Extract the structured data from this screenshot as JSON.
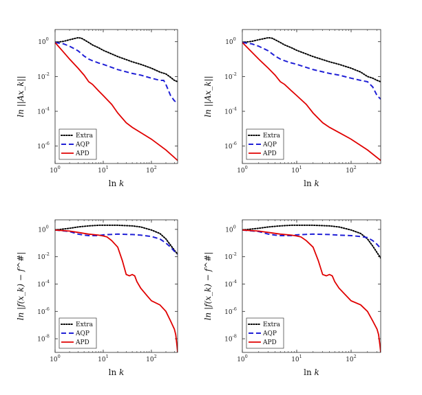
{
  "chart_data": [
    {
      "type": "line",
      "panel": "top-left",
      "xscale": "log",
      "yscale": "log",
      "xlim": [
        1,
        350
      ],
      "ylim": [
        1e-07,
        5
      ],
      "xticks": [
        1,
        10,
        100
      ],
      "yticks": [
        1e-06,
        0.0001,
        0.01,
        1
      ],
      "xlabel": "ln k",
      "ylabel": "ln ||Ax_k||",
      "legend_position": "bottom-left",
      "series": [
        {
          "name": "Extra",
          "style": "dotted",
          "color": "#000000",
          "x": [
            1,
            1.5,
            2,
            2.5,
            3,
            3.5,
            4,
            5,
            6,
            8,
            10,
            20,
            40,
            60,
            100,
            150,
            200,
            250,
            300,
            350
          ],
          "y": [
            0.9,
            1.05,
            1.3,
            1.5,
            1.7,
            1.6,
            1.3,
            0.9,
            0.65,
            0.45,
            0.32,
            0.14,
            0.07,
            0.05,
            0.03,
            0.018,
            0.014,
            0.009,
            0.006,
            0.005
          ]
        },
        {
          "name": "AQP",
          "style": "dashed",
          "color": "#1f1fd6",
          "x": [
            1,
            1.5,
            2,
            3,
            4,
            5,
            6,
            8,
            10,
            20,
            40,
            60,
            100,
            150,
            180,
            200,
            250,
            300,
            350
          ],
          "y": [
            0.9,
            0.75,
            0.55,
            0.3,
            0.15,
            0.1,
            0.08,
            0.06,
            0.05,
            0.025,
            0.015,
            0.012,
            0.008,
            0.006,
            0.006,
            0.0035,
            0.0008,
            0.0004,
            0.0003
          ]
        },
        {
          "name": "APD",
          "style": "solid",
          "color": "#e00000",
          "x": [
            1,
            1.5,
            2,
            3,
            4,
            5,
            6,
            8,
            10,
            15,
            20,
            30,
            40,
            60,
            100,
            200,
            350
          ],
          "y": [
            0.9,
            0.25,
            0.1,
            0.03,
            0.012,
            0.005,
            0.0035,
            0.0015,
            0.0008,
            0.00025,
            8e-05,
            2.2e-05,
            1.2e-05,
            6e-06,
            2.5e-06,
            6e-07,
            1.5e-07
          ]
        }
      ]
    },
    {
      "type": "line",
      "panel": "top-right",
      "xscale": "log",
      "yscale": "log",
      "xlim": [
        1,
        350
      ],
      "ylim": [
        1e-07,
        5
      ],
      "xticks": [
        1,
        10,
        100
      ],
      "yticks": [
        1e-06,
        0.0001,
        0.01,
        1
      ],
      "xlabel": "ln k",
      "ylabel": "ln ||Ax_k||",
      "legend_position": "bottom-left",
      "series": [
        {
          "name": "Extra",
          "style": "dotted",
          "color": "#000000",
          "x": [
            1,
            1.5,
            2,
            2.5,
            3,
            3.5,
            4,
            5,
            6,
            8,
            10,
            20,
            40,
            60,
            100,
            150,
            200,
            250,
            300,
            350
          ],
          "y": [
            0.9,
            1.05,
            1.3,
            1.5,
            1.7,
            1.6,
            1.3,
            0.9,
            0.65,
            0.45,
            0.32,
            0.14,
            0.07,
            0.05,
            0.03,
            0.018,
            0.01,
            0.008,
            0.006,
            0.005
          ]
        },
        {
          "name": "AQP",
          "style": "dashed",
          "color": "#1f1fd6",
          "x": [
            1,
            1.5,
            2,
            3,
            4,
            5,
            6,
            8,
            10,
            20,
            40,
            60,
            100,
            150,
            200,
            250,
            300,
            350
          ],
          "y": [
            0.9,
            0.75,
            0.55,
            0.3,
            0.15,
            0.1,
            0.08,
            0.06,
            0.05,
            0.025,
            0.015,
            0.012,
            0.008,
            0.006,
            0.005,
            0.0025,
            0.0008,
            0.0005
          ]
        },
        {
          "name": "APD",
          "style": "solid",
          "color": "#e00000",
          "x": [
            1,
            1.5,
            2,
            3,
            4,
            5,
            6,
            8,
            10,
            15,
            20,
            30,
            40,
            60,
            100,
            200,
            350
          ],
          "y": [
            0.9,
            0.25,
            0.1,
            0.03,
            0.012,
            0.005,
            0.0035,
            0.0015,
            0.0008,
            0.00025,
            8e-05,
            2.2e-05,
            1.2e-05,
            6e-06,
            2.5e-06,
            6e-07,
            1.5e-07
          ]
        }
      ]
    },
    {
      "type": "line",
      "panel": "bottom-left",
      "xscale": "log",
      "yscale": "log",
      "xlim": [
        1,
        350
      ],
      "ylim": [
        1e-09,
        5
      ],
      "xticks": [
        1,
        10,
        100
      ],
      "yticks": [
        1e-08,
        1e-06,
        0.0001,
        0.01,
        1
      ],
      "xlabel": "ln k",
      "ylabel": "ln |f(x_k) − f^#|",
      "legend_position": "bottom-left",
      "series": [
        {
          "name": "Extra",
          "style": "dotted",
          "color": "#000000",
          "x": [
            1,
            2,
            3,
            5,
            8,
            10,
            20,
            40,
            60,
            100,
            150,
            200,
            250,
            300,
            350
          ],
          "y": [
            0.9,
            1.2,
            1.5,
            1.8,
            2.0,
            2.0,
            2.0,
            1.8,
            1.5,
            0.9,
            0.5,
            0.2,
            0.07,
            0.03,
            0.015
          ]
        },
        {
          "name": "AQP",
          "style": "dashed",
          "color": "#1f1fd6",
          "x": [
            1,
            2,
            3,
            4,
            5,
            6,
            8,
            10,
            20,
            40,
            60,
            100,
            150,
            200,
            250,
            300,
            350
          ],
          "y": [
            0.9,
            0.7,
            0.45,
            0.38,
            0.35,
            0.35,
            0.35,
            0.4,
            0.45,
            0.42,
            0.38,
            0.3,
            0.2,
            0.1,
            0.05,
            0.025,
            0.015
          ]
        },
        {
          "name": "APD",
          "style": "solid",
          "color": "#e00000",
          "x": [
            1,
            2,
            3,
            5,
            8,
            10,
            12,
            15,
            20,
            25,
            30,
            35,
            40,
            45,
            50,
            60,
            80,
            100,
            150,
            200,
            250,
            300,
            320,
            340,
            350
          ],
          "y": [
            0.9,
            0.75,
            0.6,
            0.45,
            0.38,
            0.33,
            0.28,
            0.15,
            0.05,
            0.005,
            0.0005,
            0.0004,
            0.0005,
            0.0004,
            0.00015,
            5e-05,
            1.5e-05,
            6e-06,
            3e-06,
            1e-06,
            2e-07,
            5e-08,
            2e-08,
            3e-09,
            8e-10
          ]
        }
      ]
    },
    {
      "type": "line",
      "panel": "bottom-right",
      "xscale": "log",
      "yscale": "log",
      "xlim": [
        1,
        350
      ],
      "ylim": [
        1e-09,
        5
      ],
      "xticks": [
        1,
        10,
        100
      ],
      "yticks": [
        1e-08,
        1e-06,
        0.0001,
        0.01,
        1
      ],
      "xlabel": "ln k",
      "ylabel": "ln |f(x_k) − f^#|",
      "legend_position": "bottom-left",
      "series": [
        {
          "name": "Extra",
          "style": "dotted",
          "color": "#000000",
          "x": [
            1,
            2,
            3,
            5,
            8,
            10,
            20,
            40,
            60,
            100,
            150,
            200,
            250,
            300,
            350
          ],
          "y": [
            0.9,
            1.2,
            1.5,
            1.8,
            2.0,
            2.0,
            2.0,
            1.8,
            1.5,
            0.9,
            0.5,
            0.2,
            0.06,
            0.02,
            0.008
          ]
        },
        {
          "name": "AQP",
          "style": "dashed",
          "color": "#1f1fd6",
          "x": [
            1,
            2,
            3,
            4,
            5,
            6,
            8,
            10,
            20,
            40,
            60,
            100,
            150,
            200,
            250,
            300,
            350
          ],
          "y": [
            0.9,
            0.7,
            0.45,
            0.38,
            0.35,
            0.35,
            0.35,
            0.4,
            0.45,
            0.42,
            0.38,
            0.35,
            0.3,
            0.25,
            0.15,
            0.08,
            0.04
          ]
        },
        {
          "name": "APD",
          "style": "solid",
          "color": "#e00000",
          "x": [
            1,
            2,
            3,
            5,
            8,
            10,
            12,
            15,
            20,
            25,
            30,
            35,
            40,
            45,
            50,
            60,
            80,
            100,
            150,
            200,
            250,
            300,
            320,
            340,
            350
          ],
          "y": [
            0.9,
            0.75,
            0.6,
            0.45,
            0.38,
            0.33,
            0.28,
            0.15,
            0.05,
            0.005,
            0.0005,
            0.0004,
            0.0005,
            0.0004,
            0.00015,
            5e-05,
            1.5e-05,
            6e-06,
            3e-06,
            1e-06,
            2e-07,
            5e-08,
            2e-08,
            3e-09,
            8e-10
          ]
        }
      ]
    }
  ],
  "labels": {
    "xlabel_text": "ln",
    "xlabel_var": "k",
    "ylabel_top": "ln ||Ax_k||",
    "ylabel_bottom": "ln |f(x_k) − f^#|"
  }
}
